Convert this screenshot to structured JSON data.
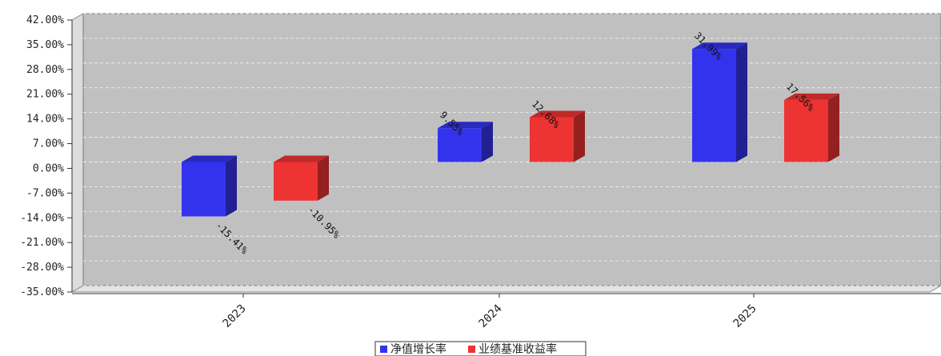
{
  "chart_data": {
    "type": "bar",
    "categories": [
      "2023",
      "2024",
      "2025"
    ],
    "series": [
      {
        "name": "净值增长率",
        "values": [
          -15.41,
          9.55,
          31.99
        ],
        "labels": [
          "-15.41%",
          "9.55%",
          "31.99%"
        ],
        "color": "#3333ee"
      },
      {
        "name": "业绩基准收益率",
        "values": [
          -10.95,
          12.68,
          17.56
        ],
        "labels": [
          "-10.95%",
          "12.68%",
          "17.56%"
        ],
        "color": "#ee3333"
      }
    ],
    "y_ticks": [
      42,
      35,
      28,
      21,
      14,
      7,
      0,
      -7,
      -14,
      -21,
      -28,
      -35
    ],
    "y_tick_labels": [
      "42.00%",
      "35.00%",
      "28.00%",
      "21.00%",
      "14.00%",
      "7.00%",
      "0.00%",
      "-7.00%",
      "-14.00%",
      "-21.00%",
      "-28.00%",
      "-35.00%"
    ],
    "ylim": [
      -35,
      42
    ],
    "grid": true,
    "legend_position": "bottom-center",
    "plot_background": "#c0c0c0"
  }
}
